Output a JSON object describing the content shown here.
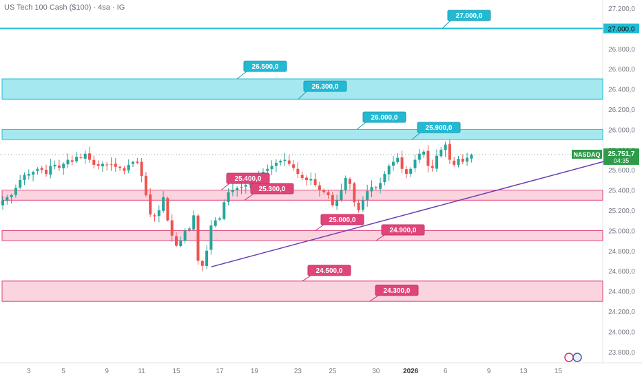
{
  "header": {
    "title": "US Tech 100 Cash ($100) · 4sa · IG"
  },
  "colors": {
    "up": "#26a69a",
    "down": "#ef5350",
    "resistance": "#22bcd4",
    "resistance_fill": "#a6e8f0",
    "support": "#e0457a",
    "support_fill": "#fad4df",
    "trendline": "#6a3fb5",
    "price_badge": "#2e9b4a",
    "axis_text": "#787b86"
  },
  "chart_data": {
    "type": "candlestick",
    "y_axis": {
      "min": 23750,
      "max": 27250,
      "ticks": [
        "27.200,0",
        "27.000,0",
        "26.800,0",
        "26.600,0",
        "26.400,0",
        "26.200,0",
        "26.000,0",
        "25.800,0",
        "25.600,0",
        "25.400,0",
        "25.200,0",
        "25.000,0",
        "24.800,0",
        "24.600,0",
        "24.400,0",
        "24.200,0",
        "24.000,0",
        "23.800,0"
      ],
      "tick_values": [
        27200,
        27000,
        26800,
        26600,
        26400,
        26200,
        26000,
        25800,
        25600,
        25400,
        25200,
        25000,
        24800,
        24600,
        24400,
        24200,
        24000,
        23800
      ]
    },
    "x_axis": {
      "labels": [
        "3",
        "5",
        "9",
        "11",
        "15",
        "17",
        "19",
        "23",
        "25",
        "30",
        "2026",
        "6",
        "9",
        "13",
        "15"
      ],
      "label_bar_index": [
        6,
        14,
        24,
        32,
        40,
        50,
        58,
        68,
        76,
        86,
        94,
        102,
        112,
        120,
        128
      ]
    },
    "closes": [
      25300,
      25330,
      25350,
      25420,
      25500,
      25550,
      25560,
      25580,
      25610,
      25600,
      25560,
      25640,
      25650,
      25620,
      25660,
      25700,
      25680,
      25730,
      25720,
      25760,
      25700,
      25650,
      25640,
      25660,
      25650,
      25655,
      25630,
      25620,
      25590,
      25650,
      25680,
      25670,
      25540,
      25350,
      25160,
      25140,
      25200,
      25330,
      25100,
      24950,
      24850,
      24900,
      25000,
      25020,
      25150,
      24700,
      24650,
      24800,
      25050,
      25100,
      25120,
      25280,
      25380,
      25400,
      25420,
      25430,
      25450,
      25460,
      25480,
      25520,
      25580,
      25610,
      25640,
      25670,
      25690,
      25700,
      25660,
      25620,
      25560,
      25520,
      25500,
      25510,
      25450,
      25400,
      25380,
      25350,
      25250,
      25300,
      25400,
      25520,
      25460,
      25280,
      25200,
      25300,
      25390,
      25430,
      25420,
      25470,
      25560,
      25640,
      25680,
      25720,
      25610,
      25560,
      25610,
      25700,
      25760,
      25780,
      25640,
      25620,
      25740,
      25800,
      25850,
      25700,
      25650,
      25710,
      25680,
      25720,
      25751.7
    ],
    "annotations": {
      "top_line": {
        "value": 27000,
        "label": "27.000,0"
      },
      "resistance_zone_high": {
        "top": 26500,
        "bottom": 26300,
        "labels": [
          "26.500,0",
          "26.300,0"
        ]
      },
      "resistance_zone_low": {
        "top": 26000,
        "bottom": 25900,
        "labels": [
          "26.000,0",
          "25.900,0"
        ]
      },
      "support_zone_high": {
        "top": 25400,
        "bottom": 25300,
        "labels": [
          "25.400,0",
          "25.300,0"
        ]
      },
      "support_zone_mid": {
        "top": 25000,
        "bottom": 24900,
        "labels": [
          "25.000,0",
          "24.900,0"
        ]
      },
      "support_zone_low": {
        "top": 24500,
        "bottom": 24300,
        "labels": [
          "24.500,0",
          "24.300,0"
        ]
      },
      "trendline": {
        "start_bar": 48,
        "start_value": 24640,
        "end_bar": 140,
        "end_value": 25700
      }
    },
    "last_price": {
      "value": 25751.7,
      "label": "25.751,7",
      "countdown": "04:35",
      "symbol": "NASDAQ"
    },
    "line_badge": "27.000,0"
  }
}
